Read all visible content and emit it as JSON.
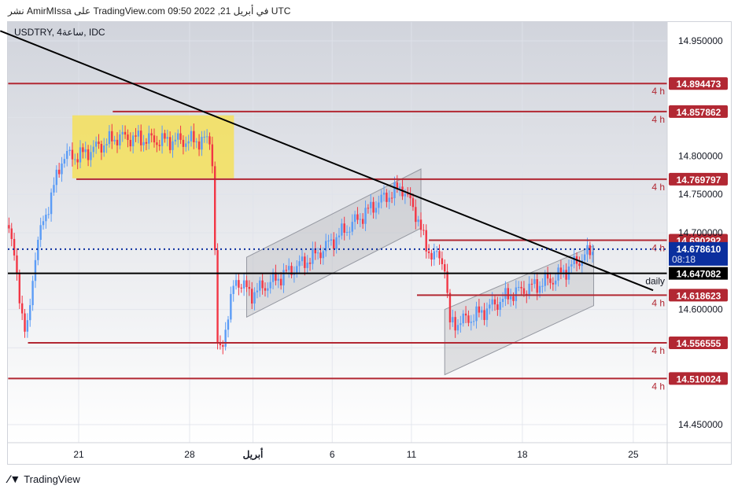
{
  "header": {
    "text": "نشر AmirMIssa على TradingView.com 09:50 2022 ,21 في أبريل UTC"
  },
  "symbol": {
    "label": "USDTRY, 4ساعة, IDC"
  },
  "footer": {
    "logo_text": "TradingView"
  },
  "colors": {
    "up": "#5b9cf6",
    "down": "#f23645",
    "level": "#b22833",
    "price": "#0b2f9e",
    "black": "#000000",
    "zone": "#f5e15a"
  },
  "chart_data": {
    "type": "candlestick",
    "timeframe": "4h",
    "x_ticks": [
      {
        "label": "21",
        "day": 0
      },
      {
        "label": "28",
        "day": 7
      },
      {
        "label": "أبريل",
        "day": 11
      },
      {
        "label": "6",
        "day": 16
      },
      {
        "label": "11",
        "day": 21
      },
      {
        "label": "18",
        "day": 28
      },
      {
        "label": "25",
        "day": 35
      }
    ],
    "y_ticks": [
      {
        "label": "14.950000",
        "v": 14.95
      },
      {
        "label": "14.850000",
        "v": 14.85
      },
      {
        "label": "14.800000",
        "v": 14.8
      },
      {
        "label": "14.750000",
        "v": 14.75
      },
      {
        "label": "14.700000",
        "v": 14.7
      },
      {
        "label": "14.600000",
        "v": 14.6
      },
      {
        "label": "14.550000",
        "v": 14.55
      },
      {
        "label": "14.450000",
        "v": 14.45
      }
    ],
    "ylim": [
      14.43,
      14.978
    ],
    "xlim": [
      -4.45,
      37.15
    ],
    "close_path": [
      [
        -4.4,
        14.71
      ],
      [
        -3.3,
        14.56
      ],
      [
        -2.7,
        14.68
      ],
      [
        -1,
        14.8
      ],
      [
        0,
        14.8
      ],
      [
        2.5,
        14.825
      ],
      [
        5,
        14.82
      ],
      [
        8.4,
        14.82
      ],
      [
        8.8,
        14.53
      ],
      [
        9.9,
        14.64
      ],
      [
        10.9,
        14.62
      ],
      [
        14.9,
        14.67
      ],
      [
        18.9,
        14.74
      ],
      [
        20.4,
        14.76
      ],
      [
        21.4,
        14.72
      ],
      [
        21.9,
        14.68
      ],
      [
        23.1,
        14.66
      ],
      [
        23.4,
        14.58
      ],
      [
        24.9,
        14.59
      ],
      [
        27.3,
        14.62
      ],
      [
        30.0,
        14.64
      ],
      [
        32.6,
        14.68
      ]
    ],
    "levels": [
      {
        "label": "14.894473",
        "v": 14.894473,
        "from": -4.45,
        "tf": "4 h"
      },
      {
        "label": "14.857862",
        "v": 14.857862,
        "from": 2.15,
        "tf": "4 h"
      },
      {
        "label": "14.769797",
        "v": 14.769797,
        "from": -0.15,
        "tf": "4 h"
      },
      {
        "label": "14.690292",
        "v": 14.690292,
        "from": 22.1,
        "tf": "4 h"
      },
      {
        "label": "14.618623",
        "v": 14.618623,
        "from": 21.35,
        "tf": "4 h"
      },
      {
        "label": "14.556555",
        "v": 14.556555,
        "from": -3.2,
        "tf": "4 h"
      },
      {
        "label": "14.510024",
        "v": 14.510024,
        "from": -4.45,
        "tf": "4 h"
      }
    ],
    "daily_level": {
      "label": "14.647082",
      "v": 14.647082,
      "name": "daily"
    },
    "current_price": {
      "label": "14.678610",
      "v": 14.67861,
      "countdown": "08:18"
    },
    "trendline": [
      [
        -4.95,
        14.963
      ],
      [
        36.25,
        14.625
      ]
    ],
    "zone": {
      "day0": -0.4,
      "day1": 9.8,
      "v0": 14.853,
      "v1": 14.771
    },
    "channels": [
      {
        "pts": [
          [
            10.6,
            14.59
          ],
          [
            10.6,
            14.668
          ],
          [
            21.6,
            14.783
          ],
          [
            21.6,
            14.706
          ]
        ]
      },
      {
        "pts": [
          [
            23.1,
            14.515
          ],
          [
            23.1,
            14.6
          ],
          [
            32.5,
            14.683
          ],
          [
            32.5,
            14.605
          ]
        ]
      }
    ]
  }
}
